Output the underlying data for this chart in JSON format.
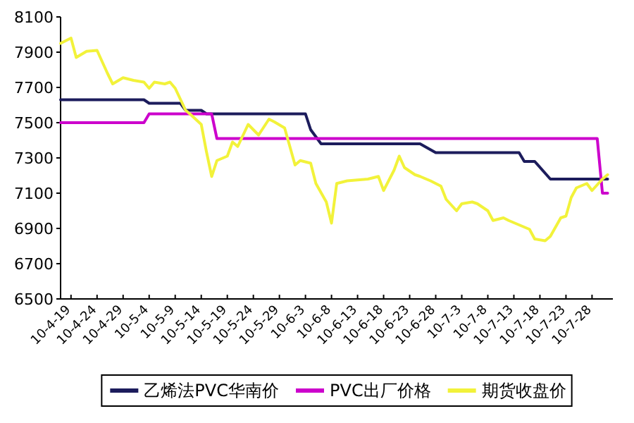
{
  "chart_data": {
    "type": "line",
    "legend": "bottom",
    "xlim": [
      "--04-17",
      "--08-01"
    ],
    "ylim": [
      6500,
      8100
    ],
    "yticks": [
      6500,
      6700,
      6900,
      7100,
      7300,
      7500,
      7700,
      7900,
      8100
    ],
    "xticks": [
      {
        "value": "--04-19",
        "label": "10-4-19"
      },
      {
        "value": "--04-24",
        "label": "10-4-24"
      },
      {
        "value": "--04-29",
        "label": "10-4-29"
      },
      {
        "value": "--05-04",
        "label": "10-5-4"
      },
      {
        "value": "--05-09",
        "label": "10-5-9"
      },
      {
        "value": "--05-14",
        "label": "10-5-14"
      },
      {
        "value": "--05-19",
        "label": "10-5-19"
      },
      {
        "value": "--05-24",
        "label": "10-5-24"
      },
      {
        "value": "--05-29",
        "label": "10-5-29"
      },
      {
        "value": "--06-03",
        "label": "10-6-3"
      },
      {
        "value": "--06-08",
        "label": "10-6-8"
      },
      {
        "value": "--06-13",
        "label": "10-6-13"
      },
      {
        "value": "--06-18",
        "label": "10-6-18"
      },
      {
        "value": "--06-23",
        "label": "10-6-23"
      },
      {
        "value": "--06-28",
        "label": "10-6-28"
      },
      {
        "value": "--07-03",
        "label": "10-7-3"
      },
      {
        "value": "--07-08",
        "label": "10-7-8"
      },
      {
        "value": "--07-13",
        "label": "10-7-13"
      },
      {
        "value": "--07-18",
        "label": "10-7-18"
      },
      {
        "value": "--07-23",
        "label": "10-7-23"
      },
      {
        "value": "--07-28",
        "label": "10-7-28"
      }
    ],
    "series": [
      {
        "name": "乙烯法PVC华南价",
        "color": "#1c1c5c",
        "x": [
          "--04-17",
          "--05-03",
          "--05-04",
          "--05-10",
          "--05-11",
          "--05-14",
          "--05-15",
          "--06-03",
          "--06-04",
          "--06-06",
          "--06-25",
          "--06-28",
          "--07-14",
          "--07-15",
          "--07-17",
          "--07-20",
          "--07-31"
        ],
        "values": [
          7630,
          7630,
          7610,
          7610,
          7570,
          7570,
          7550,
          7550,
          7460,
          7380,
          7380,
          7330,
          7330,
          7280,
          7280,
          7180,
          7180
        ]
      },
      {
        "name": "PVC出厂价格",
        "color": "#cc00cc",
        "x": [
          "--04-17",
          "--05-03",
          "--05-04",
          "--05-16",
          "--05-17",
          "--07-29",
          "--07-30",
          "--07-31"
        ],
        "values": [
          7500,
          7500,
          7550,
          7550,
          7410,
          7410,
          7100,
          7100
        ]
      },
      {
        "name": "期货收盘价",
        "color": "#f2f23a",
        "x": [
          "--04-17",
          "--04-19",
          "--04-20",
          "--04-22",
          "--04-24",
          "--04-26",
          "--04-27",
          "--04-29",
          "--05-01",
          "--05-03",
          "--05-04",
          "--05-05",
          "--05-07",
          "--05-08",
          "--05-09",
          "--05-11",
          "--05-12",
          "--05-14",
          "--05-15",
          "--05-16",
          "--05-17",
          "--05-19",
          "--05-20",
          "--05-21",
          "--05-23",
          "--05-25",
          "--05-27",
          "--05-28",
          "--05-30",
          "--05-31",
          "--06-01",
          "--06-02",
          "--06-04",
          "--06-05",
          "--06-07",
          "--06-08",
          "--06-09",
          "--06-11",
          "--06-13",
          "--06-15",
          "--06-17",
          "--06-18",
          "--06-20",
          "--06-21",
          "--06-22",
          "--06-24",
          "--06-25",
          "--06-27",
          "--06-29",
          "--06-30",
          "--07-02",
          "--07-03",
          "--07-05",
          "--07-06",
          "--07-08",
          "--07-09",
          "--07-11",
          "--07-12",
          "--07-14",
          "--07-16",
          "--07-17",
          "--07-19",
          "--07-20",
          "--07-22",
          "--07-23",
          "--07-24",
          "--07-25",
          "--07-27",
          "--07-28",
          "--07-30",
          "--07-31"
        ],
        "values": [
          7950,
          7980,
          7870,
          7905,
          7910,
          7780,
          7720,
          7755,
          7740,
          7730,
          7695,
          7730,
          7720,
          7730,
          7695,
          7570,
          7545,
          7490,
          7335,
          7195,
          7285,
          7310,
          7390,
          7365,
          7490,
          7430,
          7520,
          7505,
          7470,
          7365,
          7260,
          7285,
          7270,
          7155,
          7050,
          6930,
          7155,
          7170,
          7175,
          7180,
          7195,
          7115,
          7230,
          7310,
          7245,
          7205,
          7195,
          7170,
          7140,
          7065,
          7000,
          7040,
          7050,
          7040,
          7000,
          6945,
          6960,
          6945,
          6920,
          6895,
          6840,
          6830,
          6855,
          6960,
          6970,
          7075,
          7130,
          7155,
          7115,
          7180,
          7205
        ]
      }
    ]
  }
}
